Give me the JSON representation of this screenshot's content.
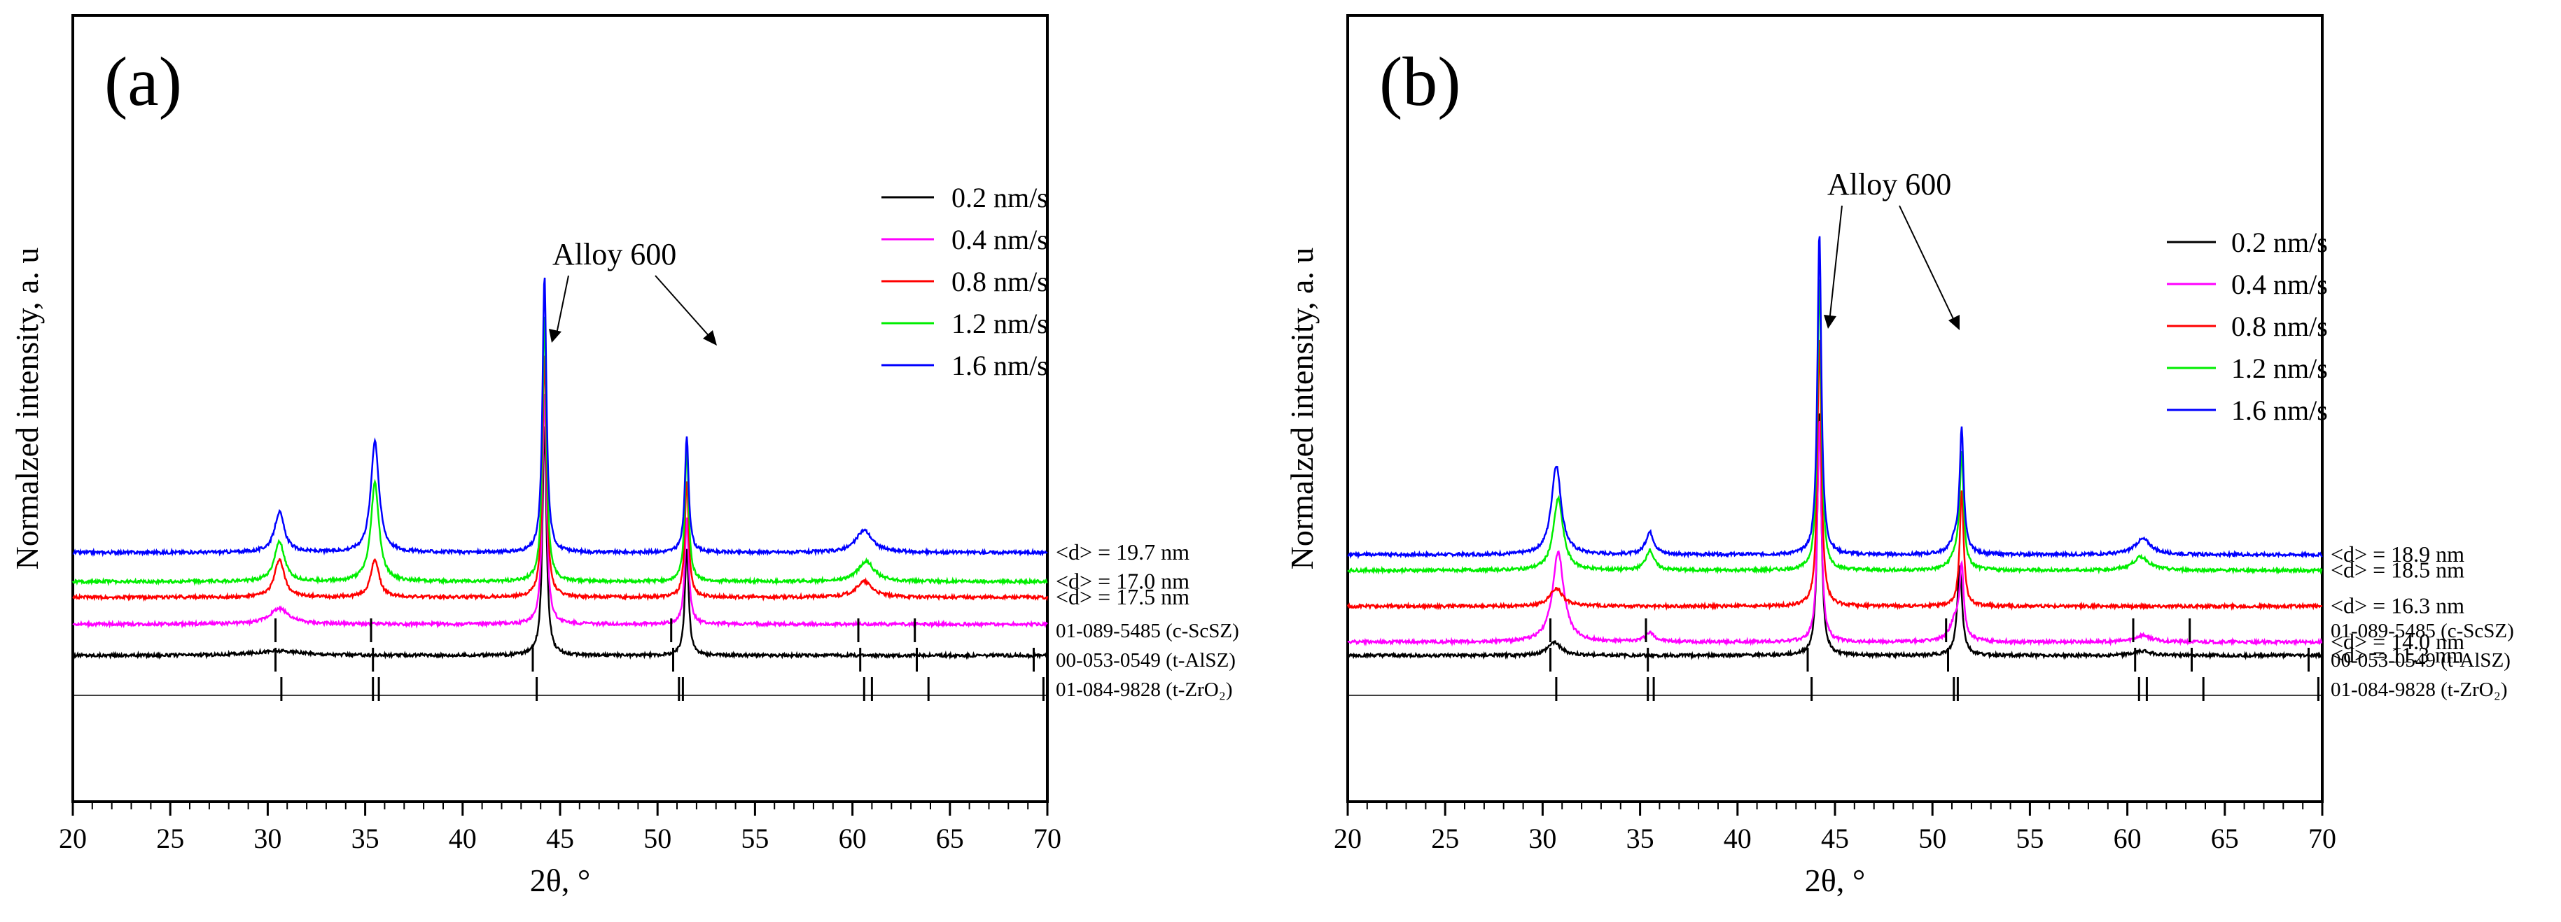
{
  "chart_data": [
    {
      "type": "line",
      "panel_label": "(a)",
      "xlabel": "2θ, °",
      "ylabel": "Normalzed intensity, a. u",
      "xlim": [
        20,
        70
      ],
      "xticks": [
        "20",
        "25",
        "30",
        "35",
        "40",
        "45",
        "50",
        "55",
        "60",
        "65",
        "70"
      ],
      "annotation": "Alloy 600",
      "legend": [
        {
          "name": "0.2 nm/s",
          "color": "#000000"
        },
        {
          "name": "0.4 nm/s",
          "color": "#ff00ff"
        },
        {
          "name": "0.8 nm/s",
          "color": "#ff0000"
        },
        {
          "name": "1.2 nm/s",
          "color": "#00ee00"
        },
        {
          "name": "1.6 nm/s",
          "color": "#0000ff"
        }
      ],
      "series": [
        {
          "name": "0.2 nm/s",
          "color": "#000000",
          "baseline": 0.0,
          "crystallite_size": "",
          "peaks": [
            {
              "x": 30.5,
              "h": 0.01,
              "w": 1.5
            },
            {
              "x": 44.2,
              "h": 0.52,
              "w": 0.12
            },
            {
              "x": 51.5,
              "h": 0.24,
              "w": 0.12
            }
          ]
        },
        {
          "name": "0.4 nm/s",
          "color": "#ff00ff",
          "baseline": 0.07,
          "crystallite_size": "",
          "peaks": [
            {
              "x": 30.6,
              "h": 0.035,
              "w": 0.6
            },
            {
              "x": 44.2,
              "h": 0.52,
              "w": 0.12
            },
            {
              "x": 51.5,
              "h": 0.24,
              "w": 0.12
            }
          ]
        },
        {
          "name": "0.8 nm/s",
          "color": "#ff0000",
          "baseline": 0.13,
          "crystallite_size": "<d> = 17.5 nm",
          "peaks": [
            {
              "x": 30.6,
              "h": 0.085,
              "w": 0.3
            },
            {
              "x": 35.5,
              "h": 0.085,
              "w": 0.25
            },
            {
              "x": 44.2,
              "h": 0.55,
              "w": 0.12
            },
            {
              "x": 51.5,
              "h": 0.26,
              "w": 0.12
            },
            {
              "x": 60.6,
              "h": 0.035,
              "w": 0.5
            }
          ]
        },
        {
          "name": "1.2 nm/s",
          "color": "#00ee00",
          "baseline": 0.165,
          "crystallite_size": "<d> = 17.0 nm",
          "peaks": [
            {
              "x": 30.6,
              "h": 0.09,
              "w": 0.3
            },
            {
              "x": 35.5,
              "h": 0.22,
              "w": 0.25
            },
            {
              "x": 44.2,
              "h": 0.6,
              "w": 0.12
            },
            {
              "x": 51.5,
              "h": 0.3,
              "w": 0.12
            },
            {
              "x": 60.7,
              "h": 0.045,
              "w": 0.5
            }
          ]
        },
        {
          "name": "1.6 nm/s",
          "color": "#0000ff",
          "baseline": 0.23,
          "crystallite_size": "<d> = 19.7 nm",
          "peaks": [
            {
              "x": 30.6,
              "h": 0.09,
              "w": 0.3
            },
            {
              "x": 35.5,
              "h": 0.25,
              "w": 0.25
            },
            {
              "x": 44.2,
              "h": 0.62,
              "w": 0.12
            },
            {
              "x": 51.5,
              "h": 0.26,
              "w": 0.12
            },
            {
              "x": 60.6,
              "h": 0.05,
              "w": 0.5
            }
          ]
        }
      ],
      "references": [
        {
          "label": "01-089-5485 (c-ScSZ)",
          "lines": [
            30.4,
            35.3,
            50.7,
            60.3,
            63.2
          ]
        },
        {
          "label": "00-053-0549 (t-AlSZ)",
          "lines": [
            30.4,
            35.4,
            43.6,
            50.8,
            60.4,
            63.3,
            69.3
          ]
        },
        {
          "label": "01-084-9828 (t-ZrO₂)",
          "lines": [
            30.7,
            35.4,
            35.7,
            43.8,
            51.1,
            51.3,
            60.6,
            61.0,
            63.9,
            69.8
          ]
        }
      ]
    },
    {
      "type": "line",
      "panel_label": "(b)",
      "xlabel": "2θ, °",
      "ylabel": "Normalzed intensity, a. u",
      "xlim": [
        20,
        70
      ],
      "xticks": [
        "20",
        "25",
        "30",
        "35",
        "40",
        "45",
        "50",
        "55",
        "60",
        "65",
        "70"
      ],
      "annotation": "Alloy 600",
      "legend": [
        {
          "name": "0.2 nm/s",
          "color": "#000000"
        },
        {
          "name": "0.4 nm/s",
          "color": "#ff00ff"
        },
        {
          "name": "0.8 nm/s",
          "color": "#ff0000"
        },
        {
          "name": "1.2 nm/s",
          "color": "#00ee00"
        },
        {
          "name": "1.6 nm/s",
          "color": "#0000ff"
        }
      ],
      "series": [
        {
          "name": "0.2 nm/s",
          "color": "#000000",
          "baseline": 0.0,
          "crystallite_size": "<d> = 11.3 nm",
          "peaks": [
            {
              "x": 30.6,
              "h": 0.03,
              "w": 0.4
            },
            {
              "x": 44.2,
              "h": 0.55,
              "w": 0.12
            },
            {
              "x": 51.4,
              "h": 0.2,
              "w": 0.15
            },
            {
              "x": 60.8,
              "h": 0.01,
              "w": 0.5
            }
          ]
        },
        {
          "name": "0.4 nm/s",
          "color": "#ff00ff",
          "baseline": 0.03,
          "crystallite_size": "<d> = 14.0 nm",
          "peaks": [
            {
              "x": 30.8,
              "h": 0.2,
              "w": 0.35
            },
            {
              "x": 35.5,
              "h": 0.02,
              "w": 0.3
            },
            {
              "x": 44.2,
              "h": 0.5,
              "w": 0.12
            },
            {
              "x": 51.2,
              "h": 0.05,
              "w": 0.35
            },
            {
              "x": 51.5,
              "h": 0.15,
              "w": 0.12
            },
            {
              "x": 60.8,
              "h": 0.015,
              "w": 0.5
            }
          ]
        },
        {
          "name": "0.8 nm/s",
          "color": "#ff0000",
          "baseline": 0.11,
          "crystallite_size": "<d> = 16.3 nm",
          "peaks": [
            {
              "x": 30.7,
              "h": 0.04,
              "w": 0.4
            },
            {
              "x": 44.2,
              "h": 0.6,
              "w": 0.12
            },
            {
              "x": 51.5,
              "h": 0.26,
              "w": 0.12
            }
          ]
        },
        {
          "name": "1.2 nm/s",
          "color": "#00ee00",
          "baseline": 0.19,
          "crystallite_size": "<d> = 18.5 nm",
          "peaks": [
            {
              "x": 30.8,
              "h": 0.16,
              "w": 0.3
            },
            {
              "x": 35.5,
              "h": 0.045,
              "w": 0.25
            },
            {
              "x": 44.2,
              "h": 0.66,
              "w": 0.12
            },
            {
              "x": 51.2,
              "h": 0.03,
              "w": 0.35
            },
            {
              "x": 51.5,
              "h": 0.25,
              "w": 0.12
            },
            {
              "x": 60.7,
              "h": 0.03,
              "w": 0.5
            }
          ]
        },
        {
          "name": "1.6 nm/s",
          "color": "#0000ff",
          "baseline": 0.225,
          "crystallite_size": "<d> = 18.9 nm",
          "peaks": [
            {
              "x": 30.7,
              "h": 0.2,
              "w": 0.3
            },
            {
              "x": 35.5,
              "h": 0.05,
              "w": 0.25
            },
            {
              "x": 44.2,
              "h": 0.72,
              "w": 0.12
            },
            {
              "x": 51.2,
              "h": 0.03,
              "w": 0.35
            },
            {
              "x": 51.5,
              "h": 0.27,
              "w": 0.12
            },
            {
              "x": 60.8,
              "h": 0.035,
              "w": 0.5
            }
          ]
        }
      ],
      "references": [
        {
          "label": "01-089-5485 (c-ScSZ)",
          "lines": [
            30.4,
            35.3,
            50.7,
            60.3,
            63.2
          ]
        },
        {
          "label": "00-053-0549 (t-AlSZ)",
          "lines": [
            30.4,
            35.4,
            43.6,
            50.8,
            60.4,
            63.3,
            69.3
          ]
        },
        {
          "label": "01-084-9828 (t-ZrO₂)",
          "lines": [
            30.7,
            35.4,
            35.7,
            43.8,
            51.1,
            51.3,
            60.6,
            61.0,
            63.9,
            69.8
          ]
        }
      ]
    }
  ]
}
